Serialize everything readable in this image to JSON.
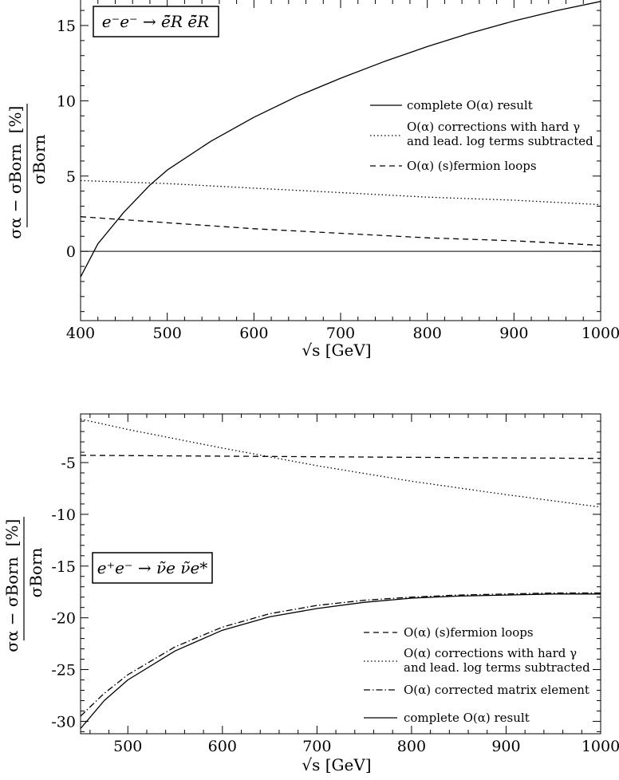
{
  "chart_data": [
    {
      "type": "line",
      "process_label": "e⁻e⁻ → ẽ̄R ẽ̄R",
      "xlabel": "√s [GeV]",
      "ylabel_num": "σα − σBorn",
      "ylabel_unit": "[%]",
      "ylabel_den": "σBorn",
      "xlim": [
        400,
        1000
      ],
      "ylim": [
        -4.6,
        16.8
      ],
      "xticks": [
        400,
        500,
        600,
        700,
        800,
        900,
        1000
      ],
      "yticks": [
        0,
        5,
        10,
        15
      ],
      "xtick_labels": [
        "400",
        "500",
        "600",
        "700",
        "800",
        "900",
        "1000"
      ],
      "ytick_labels": [
        "0",
        "5",
        "10",
        "15"
      ],
      "legend_position": "center-right",
      "series": [
        {
          "name": "complete O(α) result",
          "style": "solid",
          "x": [
            400,
            420,
            450,
            480,
            500,
            550,
            600,
            650,
            700,
            750,
            800,
            850,
            900,
            950,
            1000
          ],
          "y": [
            -1.7,
            0.5,
            2.6,
            4.4,
            5.4,
            7.3,
            8.9,
            10.3,
            11.5,
            12.6,
            13.6,
            14.5,
            15.3,
            16.0,
            16.6
          ]
        },
        {
          "name": "O(α) corrections with hard γ and lead. log terms subtracted",
          "name_line2": "and lead. log terms subtracted",
          "name_line1": "O(α) corrections with hard γ",
          "style": "dotted",
          "x": [
            400,
            500,
            600,
            700,
            800,
            900,
            1000
          ],
          "y": [
            4.7,
            4.5,
            4.2,
            3.9,
            3.6,
            3.4,
            3.1
          ]
        },
        {
          "name": "O(α) (s)fermion loops",
          "style": "dashed",
          "x": [
            400,
            500,
            600,
            700,
            800,
            900,
            1000
          ],
          "y": [
            2.3,
            1.9,
            1.5,
            1.2,
            0.9,
            0.7,
            0.4
          ]
        }
      ],
      "reference_line": 0
    },
    {
      "type": "line",
      "process_label": "e⁺e⁻ → ν̃e ν̃e*",
      "xlabel": "√s [GeV]",
      "ylabel_num": "σα − σBorn",
      "ylabel_unit": "[%]",
      "ylabel_den": "σBorn",
      "xlim": [
        450,
        1000
      ],
      "ylim": [
        -31.2,
        -0.3
      ],
      "xticks": [
        500,
        600,
        700,
        800,
        900,
        1000
      ],
      "yticks": [
        -5,
        -10,
        -15,
        -20,
        -25,
        -30
      ],
      "xtick_labels": [
        "500",
        "600",
        "700",
        "800",
        "900",
        "1000"
      ],
      "ytick_labels": [
        "-5",
        "-10",
        "-15",
        "-20",
        "-25",
        "-30"
      ],
      "legend_position": "bottom-right",
      "series": [
        {
          "name": "O(α) (s)fermion loops",
          "style": "dashed",
          "x": [
            450,
            1000
          ],
          "y": [
            -4.3,
            -4.6
          ]
        },
        {
          "name": "O(α) corrections with hard γ and lead. log terms subtracted",
          "name_line1": "O(α) corrections with hard γ",
          "name_line2": "and lead. log terms subtracted",
          "style": "dotted",
          "x": [
            450,
            500,
            600,
            700,
            800,
            900,
            1000
          ],
          "y": [
            -0.8,
            -1.8,
            -3.6,
            -5.3,
            -6.8,
            -8.1,
            -9.3
          ]
        },
        {
          "name": "O(α) corrected matrix element",
          "style": "dashdot",
          "x": [
            450,
            475,
            500,
            550,
            600,
            650,
            700,
            750,
            800,
            850,
            900,
            950,
            1000
          ],
          "y": [
            -29.5,
            -27.3,
            -25.5,
            -22.8,
            -20.9,
            -19.6,
            -18.8,
            -18.3,
            -18.0,
            -17.8,
            -17.7,
            -17.6,
            -17.6
          ]
        },
        {
          "name": "complete O(α) result",
          "style": "solid",
          "x": [
            450,
            475,
            500,
            550,
            600,
            650,
            700,
            750,
            800,
            850,
            900,
            950,
            1000
          ],
          "y": [
            -30.7,
            -28.0,
            -26.0,
            -23.2,
            -21.2,
            -19.9,
            -19.1,
            -18.5,
            -18.1,
            -17.9,
            -17.8,
            -17.7,
            -17.7
          ]
        }
      ]
    }
  ]
}
